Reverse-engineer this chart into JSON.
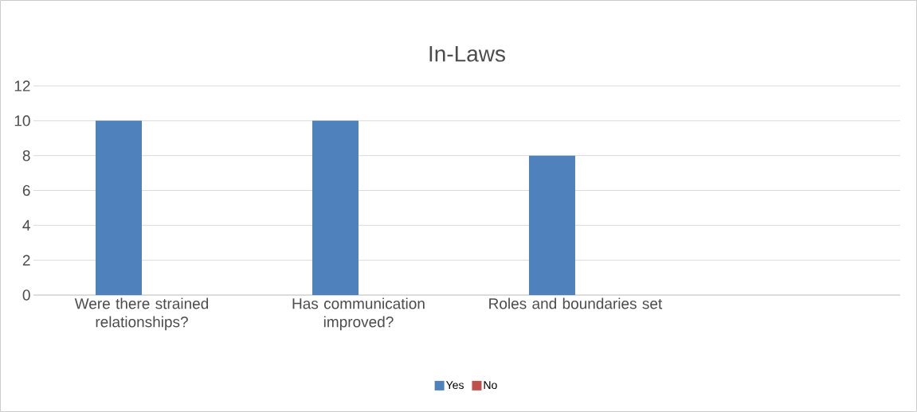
{
  "chart_data": {
    "type": "bar",
    "title": "In-Laws",
    "categories": [
      "Were there strained relationships?",
      "Has communication improved?",
      "Roles and boundaries set",
      null
    ],
    "series": [
      {
        "name": "Yes",
        "color": "#4f81bd",
        "values": [
          10,
          10,
          8,
          null
        ]
      },
      {
        "name": "No",
        "color": "#c0504d",
        "values": [
          0,
          0,
          0,
          null
        ]
      }
    ],
    "ylim": [
      0,
      12
    ],
    "yticks": [
      0,
      2,
      4,
      6,
      8,
      10,
      12
    ],
    "grid": "y",
    "legend": "bottom"
  }
}
